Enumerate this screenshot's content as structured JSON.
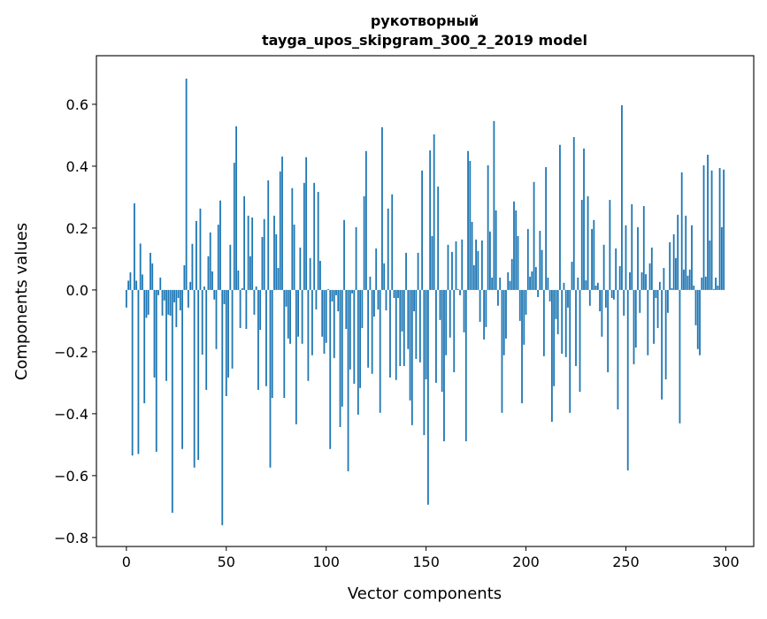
{
  "chart_data": {
    "type": "bar",
    "title": [
      "рукотворный",
      "tayga_upos_skipgram_300_2_2019 model"
    ],
    "xlabel": "Vector components",
    "ylabel": "Components values",
    "xlim": [
      -15,
      314
    ],
    "ylim": [
      -0.829,
      0.757
    ],
    "xticks": [
      0,
      50,
      100,
      150,
      200,
      250,
      300
    ],
    "xtick_labels": [
      "0",
      "50",
      "100",
      "150",
      "200",
      "250",
      "300"
    ],
    "yticks": [
      -0.8,
      -0.6,
      -0.4,
      -0.2,
      0.0,
      0.2,
      0.4,
      0.6
    ],
    "ytick_labels": [
      "−0.8",
      "−0.6",
      "−0.4",
      "−0.2",
      "0.0",
      "0.2",
      "0.4",
      "0.6"
    ],
    "grid": false,
    "color": "#1f77b4",
    "values": [
      -0.057,
      0.03,
      0.057,
      -0.535,
      0.28,
      0.03,
      -0.53,
      0.15,
      0.05,
      -0.366,
      -0.09,
      -0.08,
      0.12,
      0.086,
      -0.283,
      -0.523,
      -0.017,
      0.04,
      -0.083,
      -0.034,
      -0.294,
      -0.08,
      -0.083,
      -0.72,
      -0.04,
      -0.12,
      -0.026,
      -0.066,
      -0.514,
      0.08,
      0.683,
      -0.057,
      0.026,
      0.149,
      -0.574,
      0.223,
      -0.549,
      0.263,
      -0.209,
      0.011,
      -0.323,
      0.109,
      0.186,
      0.06,
      -0.031,
      -0.191,
      0.211,
      0.289,
      -0.76,
      -0.046,
      -0.343,
      -0.283,
      0.146,
      -0.254,
      0.411,
      0.529,
      0.063,
      -0.123,
      0.006,
      0.303,
      -0.126,
      0.24,
      0.109,
      0.234,
      -0.08,
      0.011,
      -0.323,
      -0.129,
      0.171,
      0.229,
      -0.311,
      0.354,
      -0.574,
      -0.349,
      0.24,
      0.18,
      0.071,
      0.383,
      0.431,
      -0.349,
      -0.054,
      -0.157,
      -0.174,
      0.329,
      0.211,
      -0.434,
      -0.151,
      0.137,
      -0.174,
      0.346,
      0.429,
      -0.294,
      0.103,
      -0.211,
      0.346,
      -0.063,
      0.317,
      0.094,
      -0.151,
      -0.206,
      -0.171,
      0.003,
      -0.514,
      -0.037,
      -0.22,
      -0.017,
      -0.069,
      -0.443,
      -0.377,
      0.226,
      -0.126,
      -0.586,
      -0.257,
      -0.011,
      -0.303,
      0.203,
      -0.403,
      -0.317,
      -0.123,
      0.303,
      0.449,
      -0.251,
      0.043,
      -0.271,
      -0.086,
      0.134,
      -0.063,
      -0.397,
      0.526,
      0.086,
      -0.066,
      0.263,
      -0.283,
      0.309,
      -0.026,
      -0.291,
      -0.026,
      -0.246,
      -0.134,
      -0.246,
      0.12,
      -0.191,
      -0.357,
      -0.437,
      -0.069,
      -0.223,
      0.12,
      -0.234,
      0.386,
      -0.469,
      -0.289,
      -0.694,
      0.451,
      0.174,
      0.503,
      -0.3,
      0.334,
      -0.097,
      -0.329,
      -0.489,
      -0.211,
      0.146,
      -0.154,
      0.123,
      -0.266,
      0.157,
      0.003,
      -0.017,
      0.163,
      -0.137,
      -0.489,
      0.449,
      0.417,
      0.22,
      0.08,
      0.163,
      0.126,
      -0.103,
      0.16,
      -0.16,
      -0.12,
      0.403,
      0.189,
      0.04,
      0.546,
      0.257,
      -0.051,
      0.04,
      -0.397,
      -0.211,
      -0.157,
      0.057,
      0.029,
      0.1,
      0.286,
      0.257,
      0.174,
      -0.1,
      -0.366,
      -0.177,
      -0.08,
      0.197,
      0.043,
      0.06,
      0.349,
      0.074,
      -0.023,
      0.191,
      0.129,
      -0.214,
      0.397,
      0.04,
      -0.037,
      -0.426,
      -0.311,
      -0.094,
      -0.143,
      0.469,
      -0.206,
      0.023,
      -0.217,
      -0.057,
      -0.397,
      0.091,
      0.494,
      -0.246,
      0.04,
      -0.329,
      0.291,
      0.457,
      0.031,
      0.303,
      -0.051,
      0.197,
      0.226,
      0.014,
      0.023,
      -0.069,
      -0.151,
      0.146,
      -0.057,
      -0.266,
      0.291,
      -0.026,
      -0.031,
      0.134,
      -0.386,
      0.077,
      0.597,
      -0.083,
      0.209,
      -0.583,
      0.057,
      0.277,
      -0.24,
      -0.186,
      0.203,
      -0.074,
      0.057,
      0.271,
      0.051,
      -0.211,
      0.086,
      0.137,
      -0.174,
      -0.026,
      -0.123,
      0.026,
      -0.354,
      0.071,
      -0.289,
      -0.074,
      0.154,
      0.006,
      0.18,
      0.103,
      0.243,
      -0.431,
      0.38,
      0.066,
      0.24,
      0.046,
      0.066,
      0.209,
      0.014,
      -0.114,
      -0.191,
      -0.211,
      0.04,
      0.403,
      0.043,
      0.437,
      0.16,
      0.386,
      0.003,
      0.04,
      0.014,
      0.394,
      0.203,
      0.389
    ]
  }
}
